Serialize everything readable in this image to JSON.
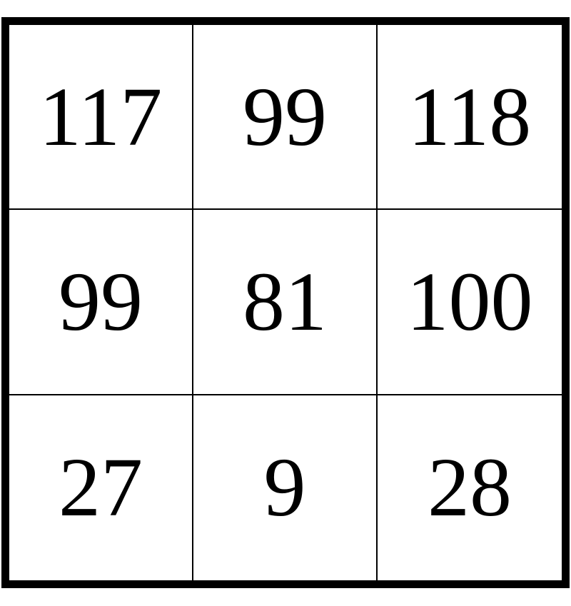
{
  "grid": {
    "cells": [
      "117",
      "99",
      "118",
      "99",
      "81",
      "100",
      "27",
      "9",
      "28"
    ]
  }
}
